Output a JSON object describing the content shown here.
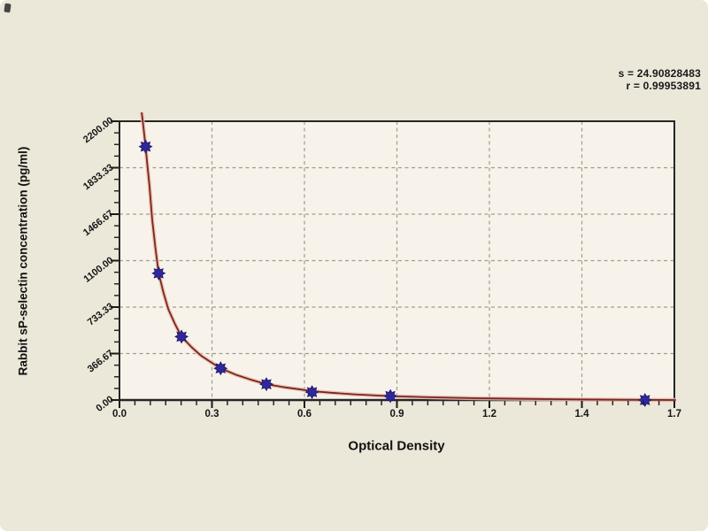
{
  "window": {
    "background": "#ebe7d9"
  },
  "chart_data": {
    "type": "scatter",
    "title": "",
    "xlabel": "Optical Density",
    "ylabel": "Rabbit sP-selectin concentration (pg/ml)",
    "xlim": [
      0,
      1.7
    ],
    "ylim": [
      0,
      2200
    ],
    "x_tick_labels": [
      "0.0",
      "0.3",
      "0.6",
      "0.9",
      "1.2",
      "1.4",
      "1.7"
    ],
    "y_tick_labels": [
      "0.00",
      "366.67",
      "733.33",
      "1100.00",
      "1466.67",
      "1833.33",
      "2200.00"
    ],
    "minor_ticks_per_x_division": 5,
    "minor_ticks_per_y_division": 3,
    "grid": {
      "style": "dashed",
      "color": "#a09d92",
      "at_major_ticks": true
    },
    "legend": {
      "visible": false
    },
    "annotation": {
      "position": "top-right",
      "lines": [
        "s = 24.90828483",
        "r = 0.99953891"
      ]
    },
    "series": [
      {
        "name": "standard-points",
        "type": "scatter",
        "marker": "star",
        "color": "#2f2899",
        "points": [
          [
            0.08,
            2000
          ],
          [
            0.12,
            1000
          ],
          [
            0.19,
            500
          ],
          [
            0.31,
            250
          ],
          [
            0.45,
            125
          ],
          [
            0.59,
            62.5
          ],
          [
            0.83,
            31.25
          ],
          [
            1.61,
            0
          ]
        ]
      },
      {
        "name": "fitted-curve",
        "type": "line",
        "color": "#7b2424",
        "halo_color": "#e6bcaa",
        "points": [
          [
            0.068,
            2270
          ],
          [
            0.074,
            2140
          ],
          [
            0.08,
            2000
          ],
          [
            0.086,
            1840
          ],
          [
            0.092,
            1690
          ],
          [
            0.1,
            1430
          ],
          [
            0.11,
            1200
          ],
          [
            0.12,
            1000
          ],
          [
            0.135,
            845
          ],
          [
            0.15,
            715
          ],
          [
            0.17,
            600
          ],
          [
            0.19,
            500
          ],
          [
            0.22,
            420
          ],
          [
            0.25,
            350
          ],
          [
            0.28,
            298
          ],
          [
            0.31,
            250
          ],
          [
            0.36,
            196
          ],
          [
            0.4,
            163
          ],
          [
            0.45,
            125
          ],
          [
            0.5,
            103
          ],
          [
            0.55,
            85
          ],
          [
            0.59,
            70
          ],
          [
            0.65,
            57
          ],
          [
            0.72,
            45
          ],
          [
            0.83,
            31
          ],
          [
            0.95,
            22
          ],
          [
            1.1,
            14
          ],
          [
            1.25,
            9
          ],
          [
            1.4,
            5
          ],
          [
            1.55,
            2
          ],
          [
            1.705,
            0
          ]
        ]
      }
    ],
    "colors": {
      "plot_background": "#f8f3ea",
      "frame": "#262626",
      "tick": "#1a1a1a",
      "text": "#141414"
    }
  }
}
